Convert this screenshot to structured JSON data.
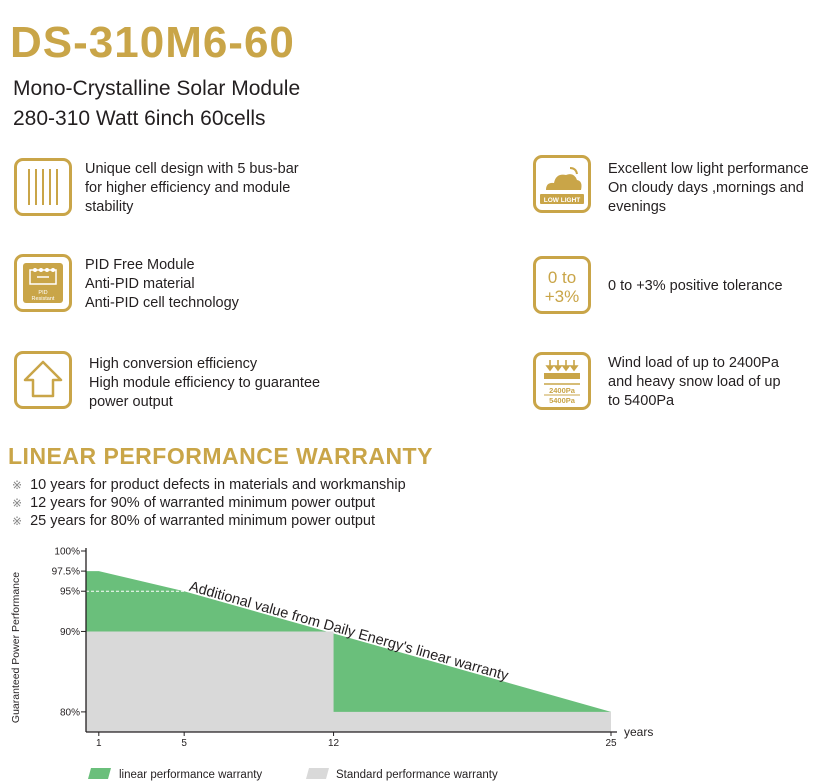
{
  "header": {
    "model": "DS-310M6-60",
    "subtitle_line1": "Mono-Crystalline Solar Module",
    "subtitle_line2": "280-310 Watt   6inch 60cells"
  },
  "features": {
    "left": [
      {
        "icon": "bus-bar-icon",
        "lines": [
          "Unique cell design with 5 bus-bar",
          "for higher efficiency and module",
          "stability"
        ]
      },
      {
        "icon": "pid-resistant-icon",
        "icon_label": "PID Resistant",
        "lines": [
          "PID Free Module",
          "Anti-PID material",
          "Anti-PID cell technology"
        ]
      },
      {
        "icon": "house-icon",
        "lines": [
          "High conversion efficiency",
          "High module efficiency to guarantee",
          "power output"
        ]
      }
    ],
    "right": [
      {
        "icon": "low-light-icon",
        "icon_label": "LOW LIGHT",
        "lines": [
          "Excellent low light performance",
          "On cloudy days ,mornings and",
          "evenings"
        ]
      },
      {
        "icon": "tolerance-icon",
        "icon_label_1": "0 to",
        "icon_label_2": "+3%",
        "lines": [
          "0 to +3% positive tolerance"
        ]
      },
      {
        "icon": "load-icon",
        "icon_label_1": "2400Pa",
        "icon_label_2": "5400Pa",
        "lines": [
          "Wind load of up to 2400Pa",
          "and heavy snow load of up",
          "to 5400Pa"
        ]
      }
    ]
  },
  "warranty": {
    "title": "LINEAR PERFORMANCE WARRANTY",
    "mark": "※",
    "items": [
      "10 years for product defects in materials and workmanship",
      "12 years for 90% of warranted  minimum power output",
      "25 years for 80% of warranted  minimum power output"
    ]
  },
  "chart_data": {
    "type": "area",
    "ylabel": "Guaranteed Power Performance",
    "xlabel": "years",
    "x_ticks": [
      "1",
      "5",
      "12",
      "25"
    ],
    "y_ticks": [
      "100%",
      "97.5%",
      "95%",
      "90%",
      "80%"
    ],
    "annotation": "Additional value from Daily Energy's linear warranty",
    "series": [
      {
        "name": "linear performance warranty",
        "color": "#6abf7b",
        "x": [
          1,
          5,
          25
        ],
        "y": [
          97.5,
          95,
          80
        ]
      },
      {
        "name": "Standard performance warranty",
        "color": "#d9d9d9",
        "x": [
          1,
          12,
          12,
          25
        ],
        "y": [
          90,
          90,
          80,
          80
        ]
      }
    ],
    "xlim": [
      0.4,
      25
    ],
    "ylim": [
      77.5,
      100
    ],
    "colors": {
      "gold": "#c9a548",
      "green": "#6abf7b",
      "grey": "#d9d9d9"
    }
  }
}
